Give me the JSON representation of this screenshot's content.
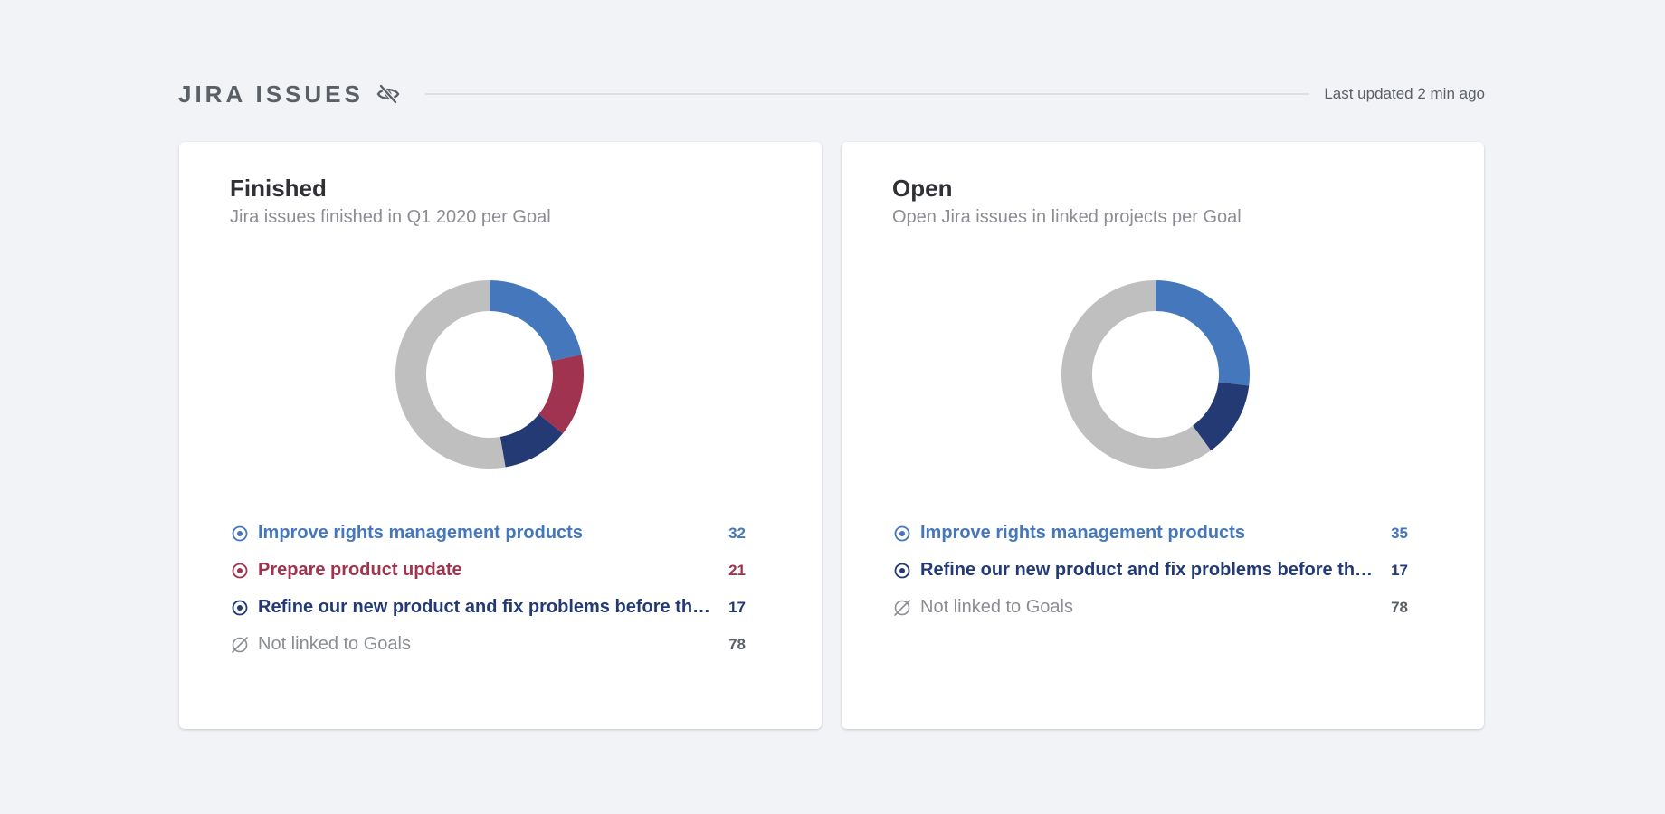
{
  "header": {
    "title": "JIRA ISSUES",
    "visibility_icon": "eye-slash-icon",
    "last_updated": "Last updated 2 min ago"
  },
  "colors": {
    "light_blue": "#4477bb",
    "red": "#a0334f",
    "dark_blue": "#233a75",
    "gray": "#bfbfbf"
  },
  "cards": [
    {
      "id": "finished",
      "title": "Finished",
      "subtitle": "Jira issues finished in Q1 2020 per Goal",
      "items": [
        {
          "label": "Improve rights management products",
          "value": 32,
          "color": "#4477bb",
          "icon": "goal-target-icon"
        },
        {
          "label": "Prepare product update",
          "value": 21,
          "color": "#a0334f",
          "icon": "goal-target-icon"
        },
        {
          "label": "Refine our new product and fix problems before they...",
          "value": 17,
          "color": "#233a75",
          "icon": "goal-target-icon"
        },
        {
          "label": "Not linked to Goals",
          "value": 78,
          "color": "#bfbfbf",
          "icon": "no-goal-icon"
        }
      ]
    },
    {
      "id": "open",
      "title": "Open",
      "subtitle": "Open Jira issues in linked projects per Goal",
      "items": [
        {
          "label": "Improve rights management products",
          "value": 35,
          "color": "#4477bb",
          "icon": "goal-target-icon"
        },
        {
          "label": "Refine our new product and fix problems before they...",
          "value": 17,
          "color": "#233a75",
          "icon": "goal-target-icon"
        },
        {
          "label": "Not linked to Goals",
          "value": 78,
          "color": "#bfbfbf",
          "icon": "no-goal-icon"
        }
      ]
    }
  ]
}
